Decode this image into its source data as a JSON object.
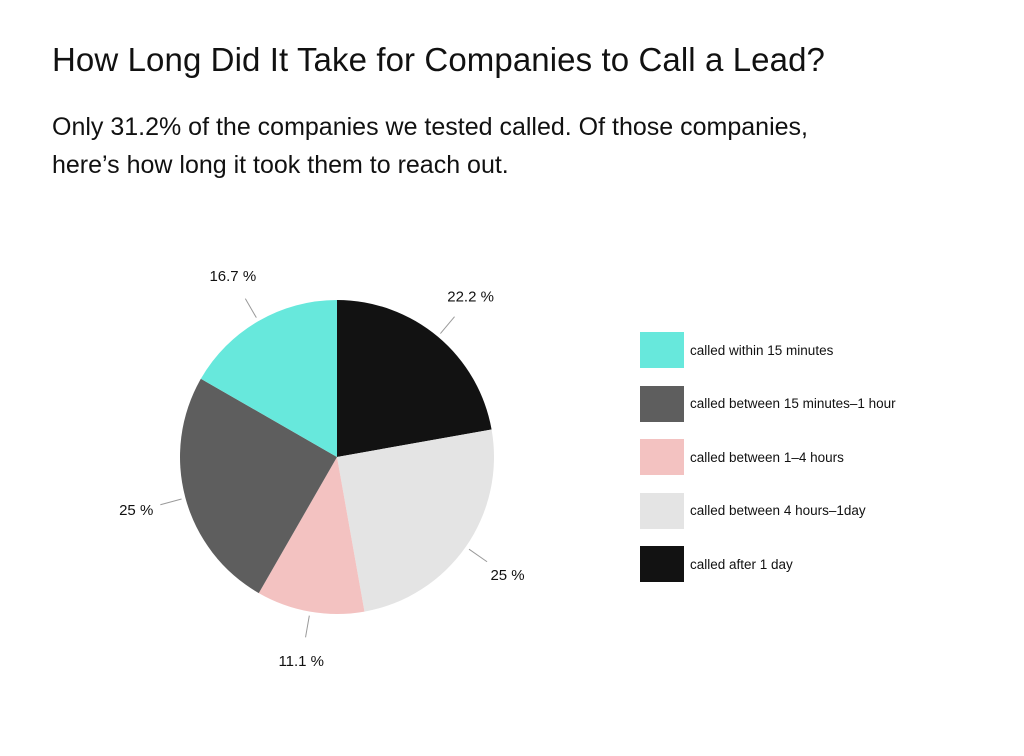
{
  "header": {
    "title": "How Long Did It Take for Companies to Call a Lead?",
    "subtitle_lines": [
      "Only 31.2% of the companies we tested called. Of those companies,",
      "here’s how long it took them to reach out."
    ]
  },
  "chart_data": {
    "type": "pie",
    "title": "How Long Did It Take for Companies to Call a Lead?",
    "subtitle": "Only 31.2% of the companies we tested called. Of those companies, here’s how long it took them to reach out.",
    "start": "12 o'clock",
    "direction": "clockwise",
    "legend_position": "right",
    "slices": [
      {
        "name": "called after 1 day",
        "value": 22.2,
        "label": "22.2 %",
        "color": "#121212"
      },
      {
        "name": "called between 4 hours–1day",
        "value": 25,
        "label": "25 %",
        "color": "#e4e4e4"
      },
      {
        "name": "called between 1–4 hours",
        "value": 11.1,
        "label": "11.1 %",
        "color": "#f3c2c1"
      },
      {
        "name": "called between 15 minutes–1 hour",
        "value": 25,
        "label": "25 %",
        "color": "#5e5e5e"
      },
      {
        "name": "called within 15 minutes",
        "value": 16.7,
        "label": "16.7 %",
        "color": "#67e8dc"
      }
    ],
    "legend": [
      {
        "label": "called within 15 minutes",
        "color": "#67e8dc"
      },
      {
        "label": "called between 15 minutes–1 hour",
        "color": "#5e5e5e"
      },
      {
        "label": "called between 1–4 hours",
        "color": "#f3c2c1"
      },
      {
        "label": "called between 4 hours–1day",
        "color": "#e4e4e4"
      },
      {
        "label": "called after 1 day",
        "color": "#121212"
      }
    ]
  }
}
